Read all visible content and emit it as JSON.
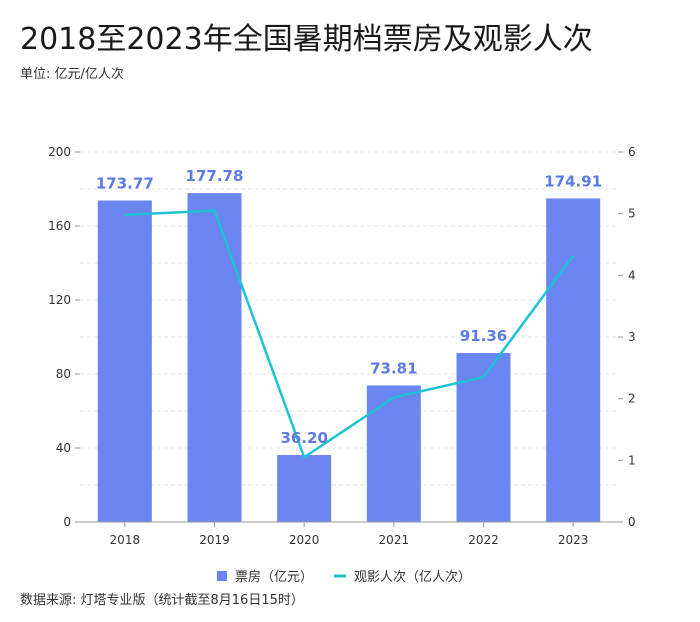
{
  "title": "2018至2023年全国暑期档票房及观影人次",
  "unit_label": "单位: 亿元/亿人次",
  "source_note": "数据来源: 灯塔专业版（统计截至8月16日15时）",
  "colors": {
    "bar": "#6b86f0",
    "line": "#1cc3d4",
    "label": "#5b7ae6"
  },
  "chart_data": {
    "type": "bar",
    "title": "2018至2023年全国暑期档票房及观影人次",
    "categories": [
      "2018",
      "2019",
      "2020",
      "2021",
      "2022",
      "2023"
    ],
    "series": [
      {
        "name": "票房（亿元）",
        "type": "bar",
        "axis": "left",
        "values": [
          173.77,
          177.78,
          36.2,
          73.81,
          91.36,
          174.91
        ],
        "labels": [
          "173.77",
          "177.78",
          "36.20",
          "73.81",
          "91.36",
          "174.91"
        ]
      },
      {
        "name": "观影人次（亿人次）",
        "type": "line",
        "axis": "right",
        "values": [
          4.98,
          5.05,
          1.05,
          2.02,
          2.35,
          4.32
        ]
      }
    ],
    "y_left": {
      "min": 0,
      "max": 200,
      "ticks": [
        "0",
        "40",
        "80",
        "120",
        "160",
        "200"
      ]
    },
    "y_right": {
      "min": 0,
      "max": 6,
      "ticks": [
        "0",
        "1",
        "2",
        "3",
        "4",
        "5",
        "6"
      ]
    },
    "grid": true,
    "legend_position": "bottom-center"
  }
}
